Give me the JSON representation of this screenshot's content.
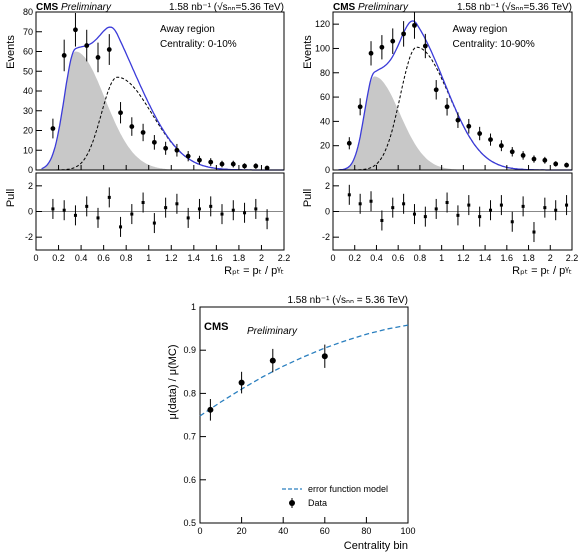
{
  "chart_data": [
    {
      "type": "histogram-fit",
      "panel": "top-left",
      "cms_label": "CMS",
      "preliminary_label": "Preliminary",
      "lumi_text": "1.58 nb⁻¹ (√sₙₙ=5.36 TeV)",
      "region_label": "Away region",
      "centrality_label": "Centrality: 0-10%",
      "ylabel": "Events",
      "pull_ylabel": "Pull",
      "xlabel": "Rₚₜ = pₜ / pᵞₜ",
      "xlim": [
        0,
        2.2
      ],
      "ylim": [
        0,
        80
      ],
      "pull_ylim": [
        -3,
        3
      ],
      "x_ticks": [
        "0",
        "0.2",
        "0.4",
        "0.6",
        "0.8",
        "1",
        "1.2",
        "1.4",
        "1.6",
        "1.8",
        "2",
        "2.2"
      ],
      "y_ticks": [
        "0",
        "10",
        "20",
        "30",
        "40",
        "50",
        "60",
        "70",
        "80"
      ],
      "pull_ticks": [
        "-2",
        "0",
        "2"
      ],
      "x": [
        0.15,
        0.25,
        0.35,
        0.45,
        0.55,
        0.65,
        0.75,
        0.85,
        0.95,
        1.05,
        1.15,
        1.25,
        1.35,
        1.45,
        1.55,
        1.65,
        1.75,
        1.85,
        1.95,
        2.05
      ],
      "y": [
        21,
        58,
        71,
        63,
        57,
        61,
        29,
        22,
        19,
        14,
        11,
        10,
        7,
        5,
        4,
        3,
        3,
        2,
        2,
        1
      ],
      "yerr": [
        5,
        8,
        8.5,
        8,
        7.5,
        7.8,
        5.4,
        4.7,
        4.4,
        3.7,
        3.3,
        3.2,
        2.6,
        2.2,
        2,
        1.7,
        1.7,
        1.4,
        1.4,
        1
      ],
      "pull": [
        0.2,
        0.1,
        -0.3,
        0.4,
        -0.5,
        1.1,
        -1.2,
        -0.2,
        0.7,
        -0.9,
        0.3,
        0.6,
        -0.5,
        0.2,
        0.4,
        -0.2,
        0.1,
        -0.1,
        0.2,
        -0.6
      ],
      "colors": {
        "total_fit": "#3b3bd9",
        "signal_fill": "#c8c8c8",
        "background_fit": "#000000",
        "zero_line": "#888888"
      }
    },
    {
      "type": "histogram-fit",
      "panel": "top-right",
      "cms_label": "CMS",
      "preliminary_label": "Preliminary",
      "lumi_text": "1.58 nb⁻¹ (√sₙₙ=5.36 TeV)",
      "region_label": "Away region",
      "centrality_label": "Centrality: 10-90%",
      "ylabel": "Events",
      "pull_ylabel": "Pull",
      "xlabel": "Rₚₜ = pₜ / pᵞₜ",
      "xlim": [
        0,
        2.2
      ],
      "ylim": [
        0,
        130
      ],
      "pull_ylim": [
        -3,
        3
      ],
      "x_ticks": [
        "0",
        "0.2",
        "0.4",
        "0.6",
        "0.8",
        "1",
        "1.2",
        "1.4",
        "1.6",
        "1.8",
        "2",
        "2.2"
      ],
      "y_ticks": [
        "0",
        "20",
        "40",
        "60",
        "80",
        "100",
        "120"
      ],
      "pull_ticks": [
        "-2",
        "0",
        "2"
      ],
      "x": [
        0.15,
        0.25,
        0.35,
        0.45,
        0.55,
        0.65,
        0.75,
        0.85,
        0.95,
        1.05,
        1.15,
        1.25,
        1.35,
        1.45,
        1.55,
        1.65,
        1.75,
        1.85,
        1.95,
        2.05,
        2.15
      ],
      "y": [
        22,
        52,
        96,
        101,
        106,
        112,
        119,
        102,
        66,
        52,
        41,
        36,
        30,
        25,
        20,
        15,
        12,
        9,
        8,
        5,
        4
      ],
      "yerr": [
        5,
        7,
        10,
        10,
        10.5,
        10.5,
        11,
        10,
        8,
        7.2,
        6.4,
        6,
        5.5,
        5,
        4.5,
        3.9,
        3.5,
        3,
        2.8,
        2.2,
        2
      ],
      "pull": [
        1.3,
        0.6,
        0.8,
        -0.7,
        0.3,
        0.6,
        -0.2,
        -0.4,
        0.2,
        0.7,
        -0.3,
        0.5,
        -0.4,
        0.1,
        0.5,
        -0.8,
        0.4,
        -1.6,
        0.3,
        0.1,
        0.5
      ],
      "colors": {
        "total_fit": "#3b3bd9",
        "signal_fill": "#c8c8c8",
        "background_fit": "#000000",
        "zero_line": "#888888"
      }
    },
    {
      "type": "scatter",
      "panel": "bottom",
      "cms_label": "CMS",
      "preliminary_label": "Preliminary",
      "lumi_text": "1.58 nb⁻¹ (√sₙₙ = 5.36 TeV)",
      "ylabel": "μ(data) / μ(MC)",
      "xlabel": "Centrality bin",
      "xlim": [
        0,
        100
      ],
      "ylim": [
        0.5,
        1.0
      ],
      "x_ticks": [
        "0",
        "20",
        "40",
        "60",
        "80",
        "100"
      ],
      "y_ticks": [
        "0.5",
        "0.6",
        "0.7",
        "0.8",
        "0.9",
        "1"
      ],
      "series": [
        {
          "name": "Data",
          "x": [
            5,
            20,
            35,
            60
          ],
          "xerr": [
            5,
            10,
            15,
            30
          ],
          "y": [
            0.762,
            0.825,
            0.876,
            0.886
          ],
          "yerr": [
            0.025,
            0.025,
            0.027,
            0.027
          ]
        },
        {
          "name": "error function model",
          "x": [
            0,
            10,
            20,
            30,
            40,
            50,
            60,
            70,
            80,
            90,
            100
          ],
          "y": [
            0.748,
            0.78,
            0.81,
            0.838,
            0.863,
            0.885,
            0.905,
            0.922,
            0.937,
            0.949,
            0.958
          ]
        }
      ],
      "legend_position": "bottom-right",
      "colors": {
        "model": "#2a7fbf",
        "data": "#000000"
      }
    }
  ]
}
